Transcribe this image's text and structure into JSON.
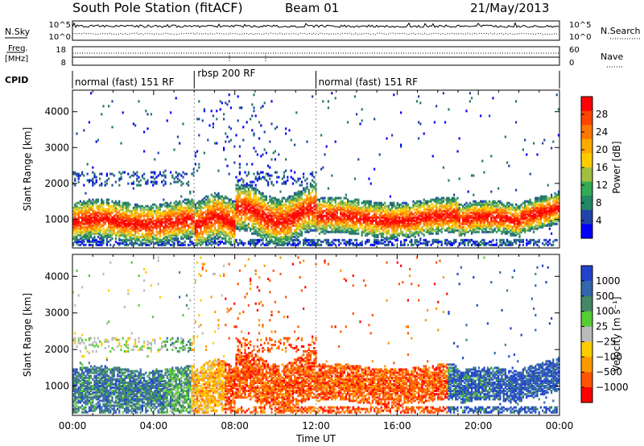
{
  "header": {
    "title": "South Pole Station (fitACF)",
    "beam": "Beam 01",
    "date": "21/May/2013"
  },
  "strip_labels": {
    "nsky": "N.Sky",
    "nsearch": "N.Search",
    "nsky_ticks": [
      "10^5",
      "10^0"
    ],
    "nsearch_ticks": [
      "10^5",
      "10^0"
    ],
    "freq_top": "Freq.",
    "freq_unit": "[MHz]",
    "freq_ticks": [
      "18",
      "8"
    ],
    "nave": "Nave",
    "nave_ticks": [
      "60",
      "0"
    ],
    "cpid": "CPID"
  },
  "cpid_segments": [
    {
      "label": "normal (fast) 151 RF",
      "start_h": 0,
      "end_h": 6
    },
    {
      "label": "rbsp 200 RF",
      "start_h": 6,
      "end_h": 12
    },
    {
      "label": "normal (fast) 151 RF",
      "start_h": 12,
      "end_h": 24
    }
  ],
  "chart_data": [
    {
      "type": "heatmap",
      "ylabel": "Slant Range [km]",
      "xlim": [
        0,
        24
      ],
      "ylim": [
        200,
        4600
      ],
      "yticks": [
        1000,
        2000,
        3000,
        4000
      ],
      "colorbar_label": "Power [dB]",
      "colorbar_ticks": [
        "28",
        "24",
        "20",
        "16",
        "12",
        "8",
        "4"
      ],
      "colorbar_colors": [
        "#ff0000",
        "#ff4400",
        "#ff7700",
        "#ffaa00",
        "#ffcc00",
        "#a0c040",
        "#33aa55",
        "#228866",
        "#2244aa",
        "#0000ff"
      ]
    },
    {
      "type": "heatmap",
      "ylabel": "Slant Range [km]",
      "xlabel": "Time UT",
      "xlim": [
        0,
        24
      ],
      "ylim": [
        200,
        4600
      ],
      "yticks": [
        1000,
        2000,
        3000,
        4000
      ],
      "xticks": [
        "00:00",
        "04:00",
        "08:00",
        "12:00",
        "16:00",
        "20:00",
        "00:00"
      ],
      "colorbar_label": "Velocity [m s⁻¹]",
      "colorbar_ticks": [
        "1000",
        "500",
        "100",
        "25",
        "−25",
        "−100",
        "−500",
        "−1000"
      ],
      "colorbar_colors": [
        "#2244cc",
        "#3366aa",
        "#448866",
        "#55cc33",
        "#bbbbbb",
        "#ffcc00",
        "#ff9900",
        "#ff5500",
        "#ff0000"
      ]
    }
  ]
}
